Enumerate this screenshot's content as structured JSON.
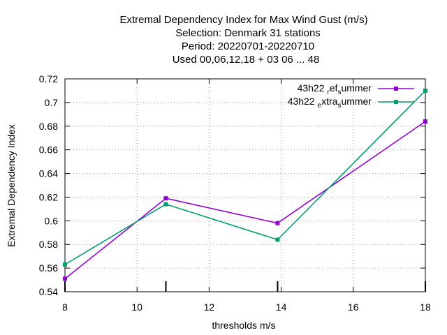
{
  "chart_data": {
    "type": "line",
    "title_lines": [
      "Extremal Dependency Index  for Max Wind Gust (m/s)",
      "Selection: Denmark     31 stations",
      "Period: 20220701-20220710",
      "Used  00,06,12,18  + 03 06 ... 48"
    ],
    "xlabel": "thresholds m/s",
    "ylabel": "Extremal Dependency Index",
    "xlim": [
      8,
      18
    ],
    "ylim": [
      0.54,
      0.72
    ],
    "xticks": [
      8,
      10,
      12,
      14,
      16,
      18
    ],
    "yticks": [
      0.54,
      0.56,
      0.58,
      0.6,
      0.62,
      0.64,
      0.66,
      0.68,
      0.7,
      0.72
    ],
    "ytick_labels": [
      "0.54",
      "0.56",
      "0.58",
      "0.6",
      "0.62",
      "0.64",
      "0.66",
      "0.68",
      "0.7",
      "0.72"
    ],
    "grid": true,
    "legend_position": "top-right",
    "threshold_marks": [
      8,
      10.8,
      13.9,
      18
    ],
    "series": [
      {
        "name": "43h22 ref summer",
        "legend_text": {
          "base": "43h22 ",
          "sub1": "r",
          "mid": "ef",
          "sub2": "s",
          "tail": "ummer"
        },
        "color": "#9400d3",
        "x": [
          8,
          10.8,
          13.9,
          18
        ],
        "y": [
          0.551,
          0.619,
          0.598,
          0.684
        ]
      },
      {
        "name": "43h22 extra summer",
        "legend_text": {
          "base": "43h22 ",
          "sub1": "e",
          "mid": "xtra",
          "sub2": "s",
          "tail": "ummer"
        },
        "color": "#009e73",
        "x": [
          8,
          10.8,
          13.9,
          18
        ],
        "y": [
          0.563,
          0.614,
          0.584,
          0.71
        ]
      }
    ]
  }
}
